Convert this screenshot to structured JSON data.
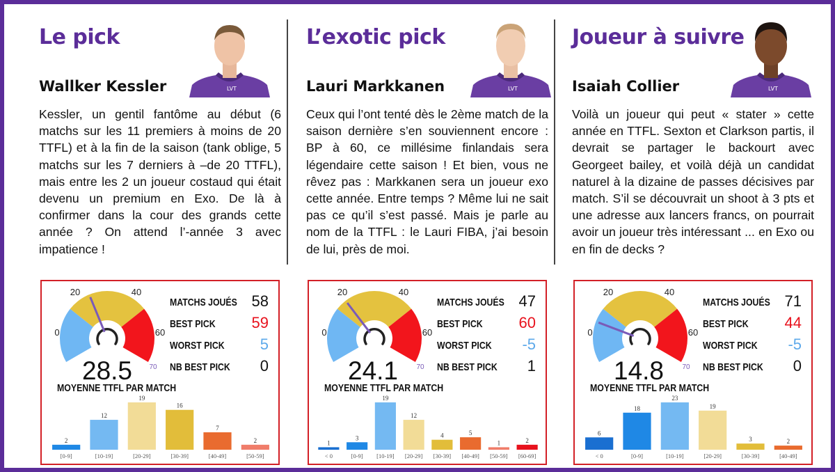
{
  "colors": {
    "purple": "#5b2d99",
    "red_border": "#d32027",
    "best": "#e8121d",
    "worst": "#5da9ea",
    "gauge_blue": "#6fb7f3",
    "gauge_yellow": "#e4c23f",
    "gauge_red": "#f2151c",
    "jersey": "#6a3ea3"
  },
  "gauge_ticks": [
    "0",
    "20",
    "40",
    "60",
    "70"
  ],
  "stat_labels": {
    "matchs": "MATCHS JOUÉS",
    "best": "BEST PICK",
    "worst": "WORST PICK",
    "nb_best": "NB BEST PICK",
    "avg_label": "MOYENNE TTFL PAR MATCH"
  },
  "players": [
    {
      "heading": "Le pick",
      "name": "Wallker Kessler",
      "photo_icon": "player-portrait",
      "blurb": "Kessler, un gentil fantôme au début (6 matchs sur les 11 premiers à moins de 20 TTFL) et à la fin de la saison (tank oblige, 5 matchs sur les 7 derniers à –de 20 TTFL), mais entre les 2 un joueur costaud qui était devenu un premium en Exo. De là à confirmer dans la cour des grands cette année ? On attend l’-année 3 avec impatience !",
      "average": "28.5",
      "matchs": "58",
      "best": "59",
      "worst": "5",
      "nb_best": "0"
    },
    {
      "heading": "L’exotic pick",
      "name": "Lauri Markkanen",
      "photo_icon": "player-portrait",
      "blurb": "Ceux qui l’ont tenté dès le 2ème match de la saison dernière s’en souviennent encore : BP à 60, ce millésime finlandais sera légendaire cette saison ! Et bien, vous ne rêvez pas : Markkanen sera un joueur exo cette année. Entre temps ? Même lui ne sait pas ce qu’il s’est passé. Mais je parle au nom de la TTFL : le Lauri FIBA, j’ai besoin de lui, près de moi.",
      "average": "24.1",
      "matchs": "47",
      "best": "60",
      "worst": "-5",
      "nb_best": "1"
    },
    {
      "heading": "Joueur à suivre",
      "name": "Isaiah Collier",
      "photo_icon": "player-portrait",
      "blurb": "Voilà un joueur qui peut « stater » cette année en TTFL. Sexton et Clarkson partis, il devrait se partager le backourt avec Georgeet bailey, et voilà déjà un candidat naturel à la dizaine de passes décisives par match. S’il se découvrait un shoot à 3 pts et une adresse aux lancers francs, on pourrait avoir un joueur très intéressant ... en Exo ou en fin de decks ?",
      "average": "14.8",
      "matchs": "71",
      "best": "44",
      "worst": "-5",
      "nb_best": "0"
    }
  ],
  "chart_data": [
    {
      "type": "gauge",
      "value": 28.5,
      "range": [
        0,
        70
      ],
      "bands": [
        {
          "from": 0,
          "to": 20,
          "color": "#6fb7f3"
        },
        {
          "from": 20,
          "to": 50,
          "color": "#e4c23f"
        },
        {
          "from": 50,
          "to": 70,
          "color": "#f2151c"
        }
      ]
    },
    {
      "type": "bar",
      "categories": [
        "[0-9]",
        "[10-19]",
        "[20-29]",
        "[30-39]",
        "[40-49]",
        "[50-59]"
      ],
      "values": [
        2,
        12,
        19,
        16,
        7,
        2
      ],
      "colors": [
        "#1f88e5",
        "#74b9f2",
        "#f2dc97",
        "#e2bd3a",
        "#e96b2f",
        "#f07d6a"
      ]
    },
    {
      "type": "gauge",
      "value": 24.1,
      "range": [
        0,
        70
      ],
      "bands": [
        {
          "from": 0,
          "to": 20,
          "color": "#6fb7f3"
        },
        {
          "from": 20,
          "to": 50,
          "color": "#e4c23f"
        },
        {
          "from": 50,
          "to": 70,
          "color": "#f2151c"
        }
      ]
    },
    {
      "type": "bar",
      "categories": [
        "< 0",
        "[0-9]",
        "[10-19]",
        "[20-29]",
        "[30-39]",
        "[40-49]",
        "[50-59]",
        "[60-69]"
      ],
      "values": [
        1,
        3,
        19,
        12,
        4,
        5,
        1,
        2
      ],
      "colors": [
        "#1a6fd1",
        "#1f88e5",
        "#74b9f2",
        "#f2dc97",
        "#e2bd3a",
        "#e96b2f",
        "#f07d6a",
        "#e8121d"
      ]
    },
    {
      "type": "gauge",
      "value": 14.8,
      "range": [
        0,
        70
      ],
      "bands": [
        {
          "from": 0,
          "to": 20,
          "color": "#6fb7f3"
        },
        {
          "from": 20,
          "to": 50,
          "color": "#e4c23f"
        },
        {
          "from": 50,
          "to": 70,
          "color": "#f2151c"
        }
      ]
    },
    {
      "type": "bar",
      "categories": [
        "< 0",
        "[0-9]",
        "[10-19]",
        "[20-29]",
        "[30-39]",
        "[40-49]"
      ],
      "values": [
        6,
        18,
        23,
        19,
        3,
        2
      ],
      "colors": [
        "#1a6fd1",
        "#1f88e5",
        "#74b9f2",
        "#f2dc97",
        "#e2bd3a",
        "#e96b2f"
      ]
    }
  ]
}
